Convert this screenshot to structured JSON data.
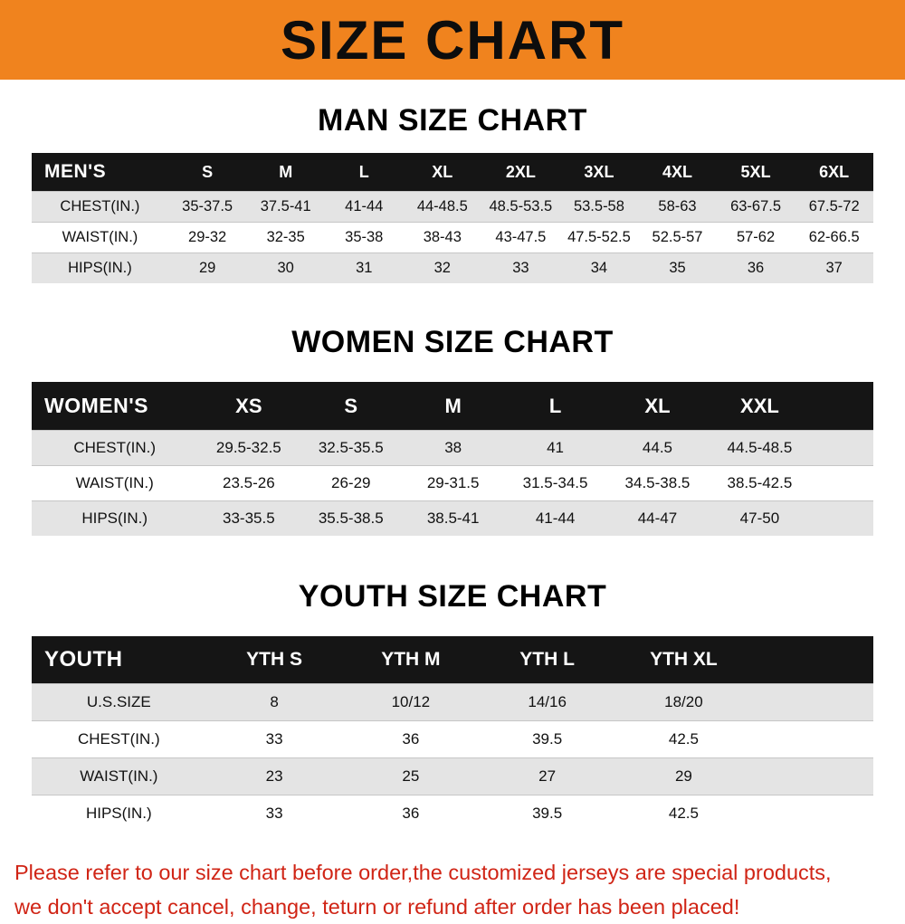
{
  "banner": {
    "title": "SIZE CHART"
  },
  "colors": {
    "banner_bg": "#F0831E",
    "header_bg": "#151515",
    "row_stripe": "#E4E4E4",
    "footer_red": "#D02415"
  },
  "chart_data": [
    {
      "type": "table",
      "title": "MAN SIZE CHART",
      "columns": [
        "MEN'S",
        "S",
        "M",
        "L",
        "XL",
        "2XL",
        "3XL",
        "4XL",
        "5XL",
        "6XL"
      ],
      "rows": [
        [
          "CHEST(IN.)",
          "35-37.5",
          "37.5-41",
          "41-44",
          "44-48.5",
          "48.5-53.5",
          "53.5-58",
          "58-63",
          "63-67.5",
          "67.5-72"
        ],
        [
          "WAIST(IN.)",
          "29-32",
          "32-35",
          "35-38",
          "38-43",
          "43-47.5",
          "47.5-52.5",
          "52.5-57",
          "57-62",
          "62-66.5"
        ],
        [
          "HIPS(IN.)",
          "29",
          "30",
          "31",
          "32",
          "33",
          "34",
          "35",
          "36",
          "37"
        ]
      ]
    },
    {
      "type": "table",
      "title": "WOMEN SIZE CHART",
      "columns": [
        "WOMEN'S",
        "XS",
        "S",
        "M",
        "L",
        "XL",
        "XXL"
      ],
      "rows": [
        [
          "CHEST(IN.)",
          "29.5-32.5",
          "32.5-35.5",
          "38",
          "41",
          "44.5",
          "44.5-48.5"
        ],
        [
          "WAIST(IN.)",
          "23.5-26",
          "26-29",
          "29-31.5",
          "31.5-34.5",
          "34.5-38.5",
          "38.5-42.5"
        ],
        [
          "HIPS(IN.)",
          "33-35.5",
          "35.5-38.5",
          "38.5-41",
          "41-44",
          "44-47",
          "47-50"
        ]
      ]
    },
    {
      "type": "table",
      "title": "YOUTH SIZE CHART",
      "columns": [
        "YOUTH",
        "YTH S",
        "YTH M",
        "YTH L",
        "YTH XL"
      ],
      "rows": [
        [
          "U.S.SIZE",
          "8",
          "10/12",
          "14/16",
          "18/20"
        ],
        [
          "CHEST(IN.)",
          "33",
          "36",
          "39.5",
          "42.5"
        ],
        [
          "WAIST(IN.)",
          "23",
          "25",
          "27",
          "29"
        ],
        [
          "HIPS(IN.)",
          "33",
          "36",
          "39.5",
          "42.5"
        ]
      ]
    }
  ],
  "footer": {
    "line1": "Please refer to our size chart before order,the customized jerseys are special products,",
    "line2": "we don't accept cancel, change, teturn or refund after order has been placed!"
  }
}
